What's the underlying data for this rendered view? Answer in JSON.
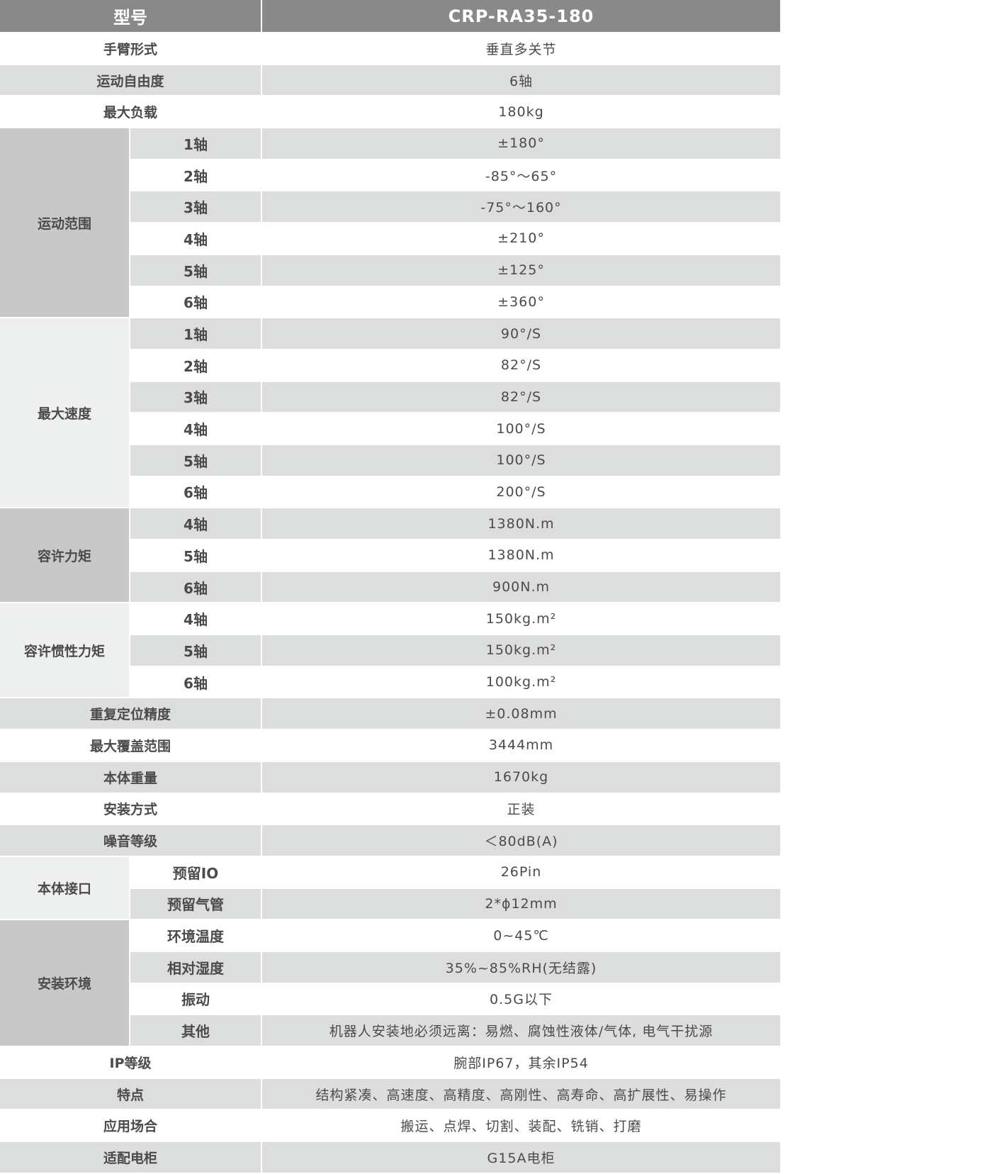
{
  "header": {
    "label": "型号",
    "value": "CRP-RA35-180"
  },
  "colors": {
    "header_bg": "#898989",
    "stripe": "#dcdddd",
    "group_dark": "#c8c8c8",
    "group_light": "#eeefef"
  },
  "rows": [
    {
      "label": "手臂形式",
      "value": "垂直多关节"
    },
    {
      "label": "运动自由度",
      "value": "6轴"
    },
    {
      "label": "最大负载",
      "value": "180kg"
    },
    {
      "label": "运动范围",
      "shade": "#c8c8c8",
      "items": [
        {
          "label": "1轴",
          "value": "±180°"
        },
        {
          "label": "2轴",
          "value": "-85°～65°"
        },
        {
          "label": "3轴",
          "value": "-75°～160°"
        },
        {
          "label": "4轴",
          "value": "±210°"
        },
        {
          "label": "5轴",
          "value": "±125°"
        },
        {
          "label": "6轴",
          "value": "±360°"
        }
      ]
    },
    {
      "label": "最大速度",
      "shade": "#eeefef",
      "items": [
        {
          "label": "1轴",
          "value": "90°/S"
        },
        {
          "label": "2轴",
          "value": "82°/S"
        },
        {
          "label": "3轴",
          "value": "82°/S"
        },
        {
          "label": "4轴",
          "value": "100°/S"
        },
        {
          "label": "5轴",
          "value": "100°/S"
        },
        {
          "label": "6轴",
          "value": "200°/S"
        }
      ]
    },
    {
      "label": "容许力矩",
      "shade": "#c8c8c8",
      "items": [
        {
          "label": "4轴",
          "value": "1380N.m"
        },
        {
          "label": "5轴",
          "value": "1380N.m"
        },
        {
          "label": "6轴",
          "value": "900N.m"
        }
      ]
    },
    {
      "label": "容许惯性力矩",
      "shade": "#eeefef",
      "items": [
        {
          "label": "4轴",
          "value": "150kg.m²"
        },
        {
          "label": "5轴",
          "value": "150kg.m²"
        },
        {
          "label": "6轴",
          "value": "100kg.m²"
        }
      ]
    },
    {
      "label": "重复定位精度",
      "value": "±0.08mm"
    },
    {
      "label": "最大覆盖范围",
      "value": "3444mm"
    },
    {
      "label": "本体重量",
      "value": "1670kg"
    },
    {
      "label": "安装方式",
      "value": "正装"
    },
    {
      "label": "噪音等级",
      "value": "＜80dB(A)"
    },
    {
      "label": "本体接口",
      "shade": "#eeefef",
      "items": [
        {
          "label": "预留IO",
          "value": "26Pin"
        },
        {
          "label": "预留气管",
          "value": "2*ϕ12mm"
        }
      ]
    },
    {
      "label": "安装环境",
      "shade": "#c8c8c8",
      "items": [
        {
          "label": "环境温度",
          "value": "0~45℃"
        },
        {
          "label": "相对湿度",
          "value": "35%~85%RH(无结露)"
        },
        {
          "label": "振动",
          "value": "0.5G以下"
        },
        {
          "label": "其他",
          "value": "机器人安装地必须远离：易燃、腐蚀性液体/气体, 电气干扰源"
        }
      ]
    },
    {
      "label": "IP等级",
      "value": "腕部IP67，其余IP54"
    },
    {
      "label": "特点",
      "value": "结构紧凑、高速度、高精度、高刚性、高寿命、高扩展性、易操作"
    },
    {
      "label": "应用场合",
      "value": "搬运、点焊、切割、装配、铣销、打磨"
    },
    {
      "label": "适配电柜",
      "value": "G15A电柜"
    }
  ]
}
